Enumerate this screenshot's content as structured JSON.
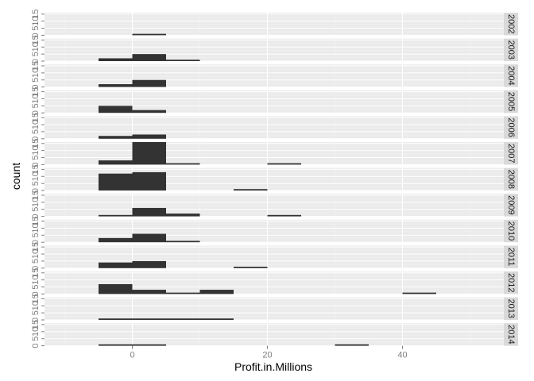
{
  "chart_data": {
    "type": "bar",
    "subtype": "faceted-histogram",
    "xlabel": "Profit.in.Millions",
    "ylabel": "count",
    "xlim": [
      -13,
      55
    ],
    "ylim": [
      0,
      16
    ],
    "bin_width": 5,
    "x_ticks": [
      0,
      20,
      40
    ],
    "x_tick_labels": [
      "0",
      "20",
      "40"
    ],
    "y_ticks": [
      0,
      5,
      10,
      15
    ],
    "y_tick_labels": [
      "0",
      "5",
      "10",
      "15"
    ],
    "grid": true,
    "legend": "none",
    "colors": {
      "panel": "#ebebeb",
      "strip": "#d9d9d9",
      "bar": "#333333",
      "grid": "#ffffff",
      "tick": "#7f7f7f"
    },
    "facets": [
      {
        "label": "2002",
        "bins": [
          {
            "x0": 0,
            "x1": 5,
            "count": 1
          }
        ]
      },
      {
        "label": "2003",
        "bins": [
          {
            "x0": -5,
            "x1": 0,
            "count": 2
          },
          {
            "x0": 0,
            "x1": 5,
            "count": 5
          },
          {
            "x0": 5,
            "x1": 10,
            "count": 1
          }
        ]
      },
      {
        "label": "2004",
        "bins": [
          {
            "x0": -5,
            "x1": 0,
            "count": 2
          },
          {
            "x0": 0,
            "x1": 5,
            "count": 5
          }
        ]
      },
      {
        "label": "2005",
        "bins": [
          {
            "x0": -5,
            "x1": 0,
            "count": 5
          },
          {
            "x0": 0,
            "x1": 5,
            "count": 2
          }
        ]
      },
      {
        "label": "2006",
        "bins": [
          {
            "x0": -5,
            "x1": 0,
            "count": 2
          },
          {
            "x0": 0,
            "x1": 5,
            "count": 3
          }
        ]
      },
      {
        "label": "2007",
        "bins": [
          {
            "x0": -5,
            "x1": 0,
            "count": 3
          },
          {
            "x0": 0,
            "x1": 5,
            "count": 16
          },
          {
            "x0": 5,
            "x1": 10,
            "count": 1
          },
          {
            "x0": 20,
            "x1": 25,
            "count": 1
          }
        ]
      },
      {
        "label": "2008",
        "bins": [
          {
            "x0": -5,
            "x1": 0,
            "count": 12
          },
          {
            "x0": 0,
            "x1": 5,
            "count": 13
          },
          {
            "x0": 15,
            "x1": 20,
            "count": 1
          }
        ]
      },
      {
        "label": "2009",
        "bins": [
          {
            "x0": -5,
            "x1": 0,
            "count": 1
          },
          {
            "x0": 0,
            "x1": 5,
            "count": 6
          },
          {
            "x0": 5,
            "x1": 10,
            "count": 2
          },
          {
            "x0": 20,
            "x1": 25,
            "count": 1
          }
        ]
      },
      {
        "label": "2010",
        "bins": [
          {
            "x0": -5,
            "x1": 0,
            "count": 3
          },
          {
            "x0": 0,
            "x1": 5,
            "count": 6
          },
          {
            "x0": 5,
            "x1": 10,
            "count": 1
          }
        ]
      },
      {
        "label": "2011",
        "bins": [
          {
            "x0": -5,
            "x1": 0,
            "count": 4
          },
          {
            "x0": 0,
            "x1": 5,
            "count": 5
          },
          {
            "x0": 15,
            "x1": 20,
            "count": 1
          }
        ]
      },
      {
        "label": "2012",
        "bins": [
          {
            "x0": -5,
            "x1": 0,
            "count": 7
          },
          {
            "x0": 0,
            "x1": 5,
            "count": 3
          },
          {
            "x0": 5,
            "x1": 10,
            "count": 1
          },
          {
            "x0": 10,
            "x1": 15,
            "count": 3
          },
          {
            "x0": 40,
            "x1": 45,
            "count": 1
          }
        ]
      },
      {
        "label": "2013",
        "bins": [
          {
            "x0": -5,
            "x1": 0,
            "count": 1
          },
          {
            "x0": 0,
            "x1": 5,
            "count": 1
          },
          {
            "x0": 5,
            "x1": 10,
            "count": 1
          },
          {
            "x0": 10,
            "x1": 15,
            "count": 1
          }
        ]
      },
      {
        "label": "2014",
        "bins": [
          {
            "x0": -5,
            "x1": 0,
            "count": 1
          },
          {
            "x0": 0,
            "x1": 5,
            "count": 1
          },
          {
            "x0": 30,
            "x1": 35,
            "count": 1
          }
        ]
      }
    ]
  }
}
